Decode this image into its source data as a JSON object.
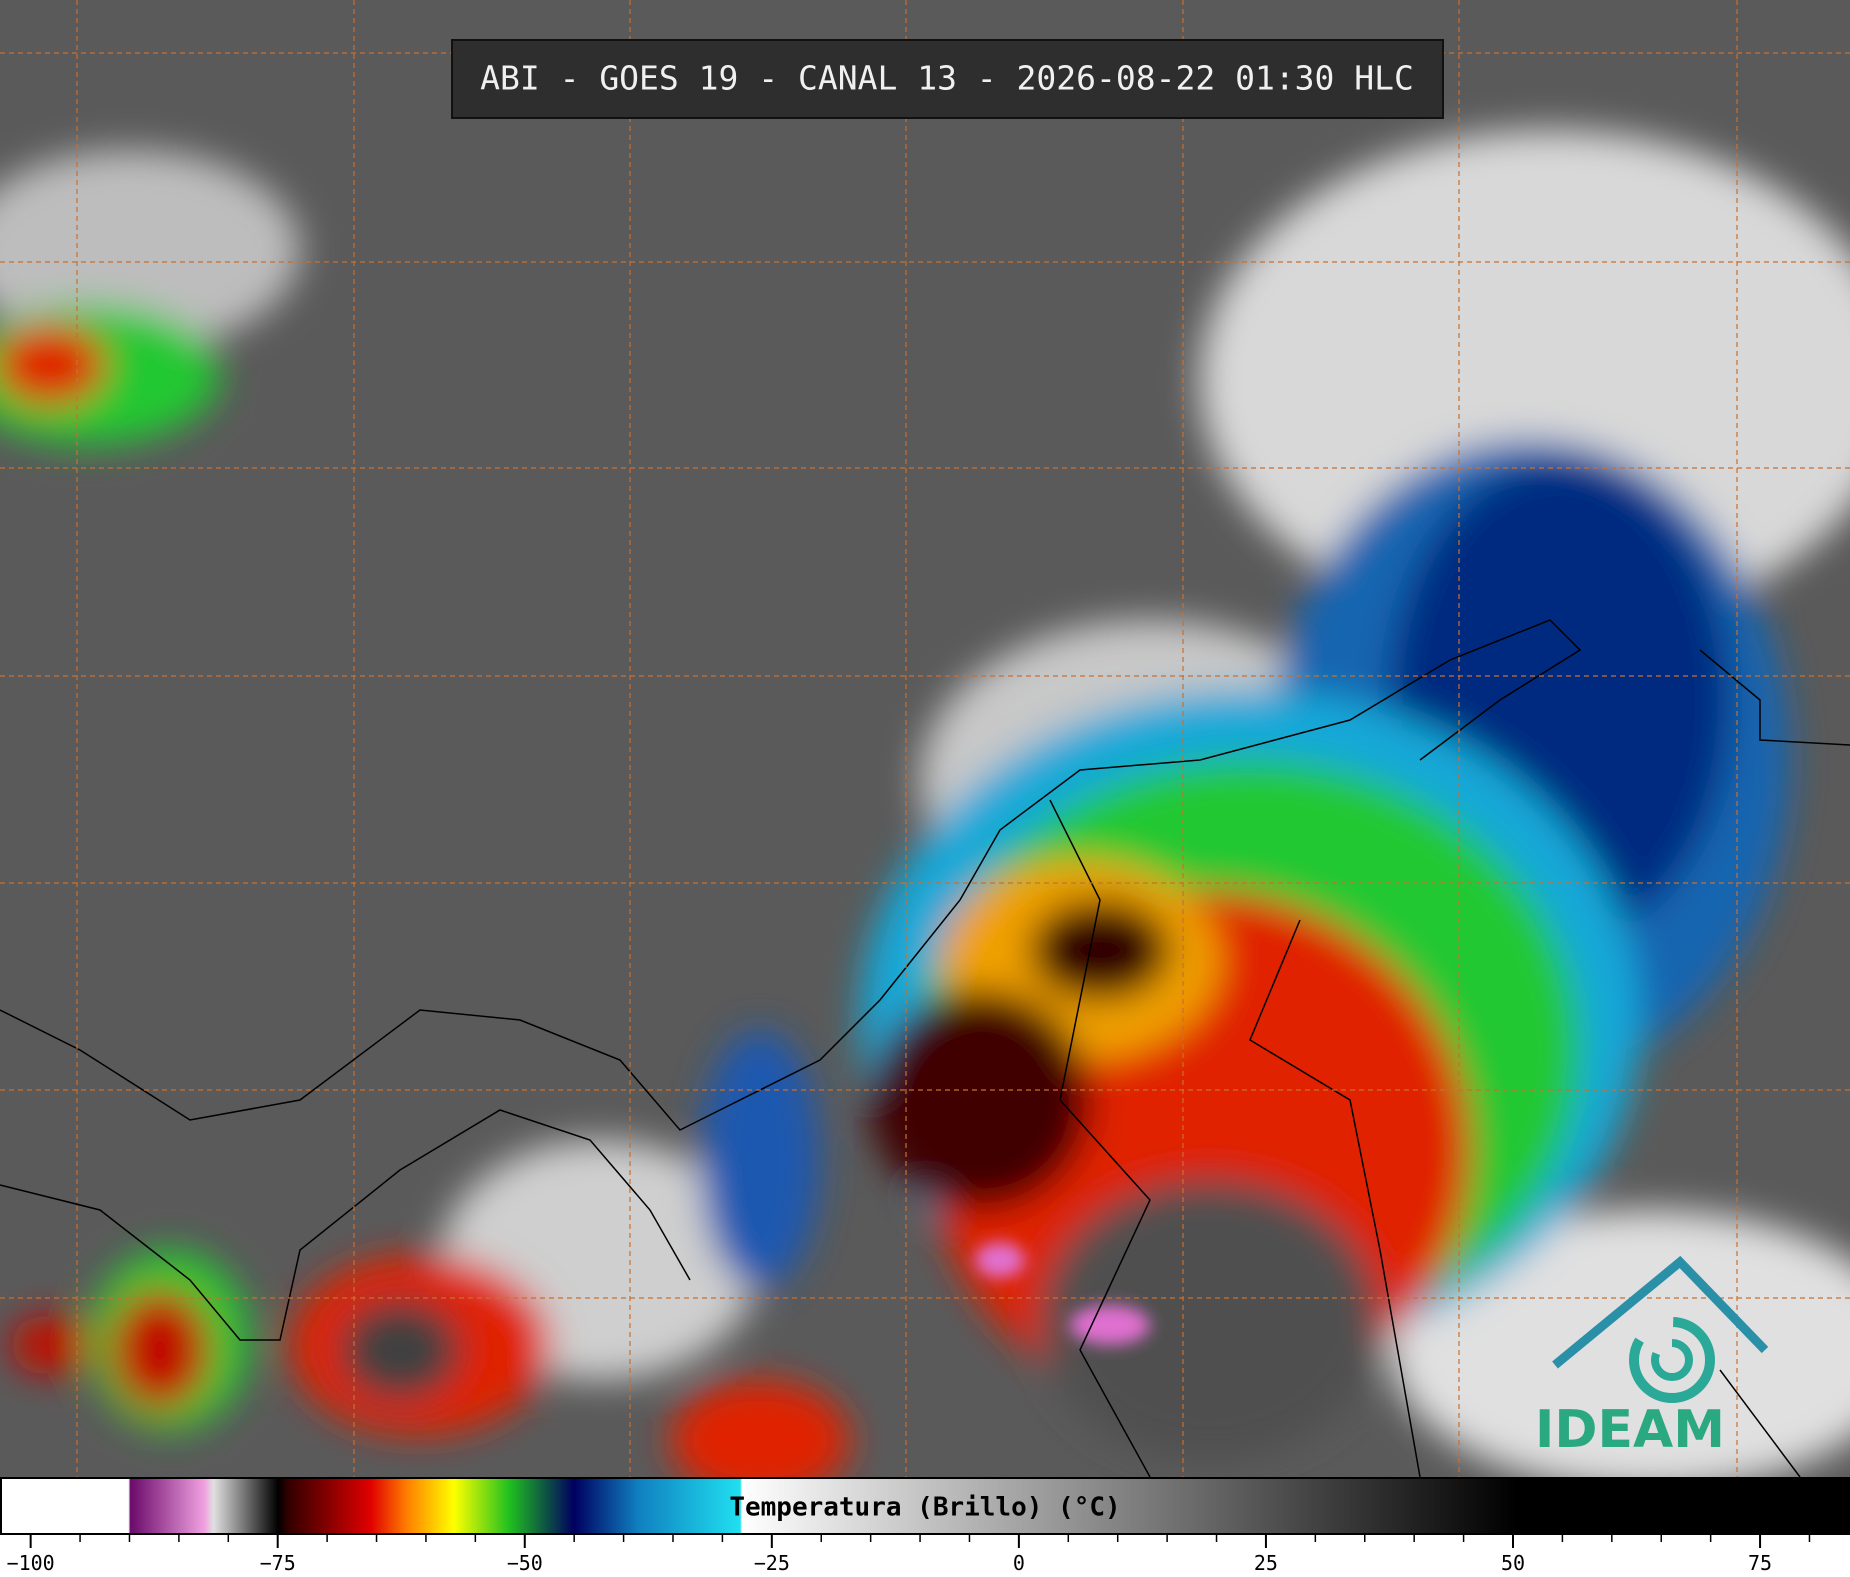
{
  "header": {
    "title": "ABI - GOES 19 - CANAL 13 - 2026-08-22 01:30 HLC"
  },
  "colorbar": {
    "label": "Temperatura (Brillo) (°C)",
    "xlim": [
      -103,
      84
    ],
    "ticks": [
      {
        "value": -100,
        "label": "−100"
      },
      {
        "value": -75,
        "label": "−75"
      },
      {
        "value": -50,
        "label": "−50"
      },
      {
        "value": -25,
        "label": "−25"
      },
      0,
      25,
      50,
      75
    ],
    "minor_ticks": [
      -95,
      -90,
      -85,
      -80,
      -70,
      -65,
      -60,
      -55,
      -45,
      -40,
      -35,
      -30,
      -20,
      -15,
      -10,
      -5,
      5,
      10,
      15,
      20,
      30,
      35,
      40,
      45,
      55,
      60,
      65,
      70,
      80
    ]
  },
  "logo": {
    "text": "IDEAM"
  }
}
